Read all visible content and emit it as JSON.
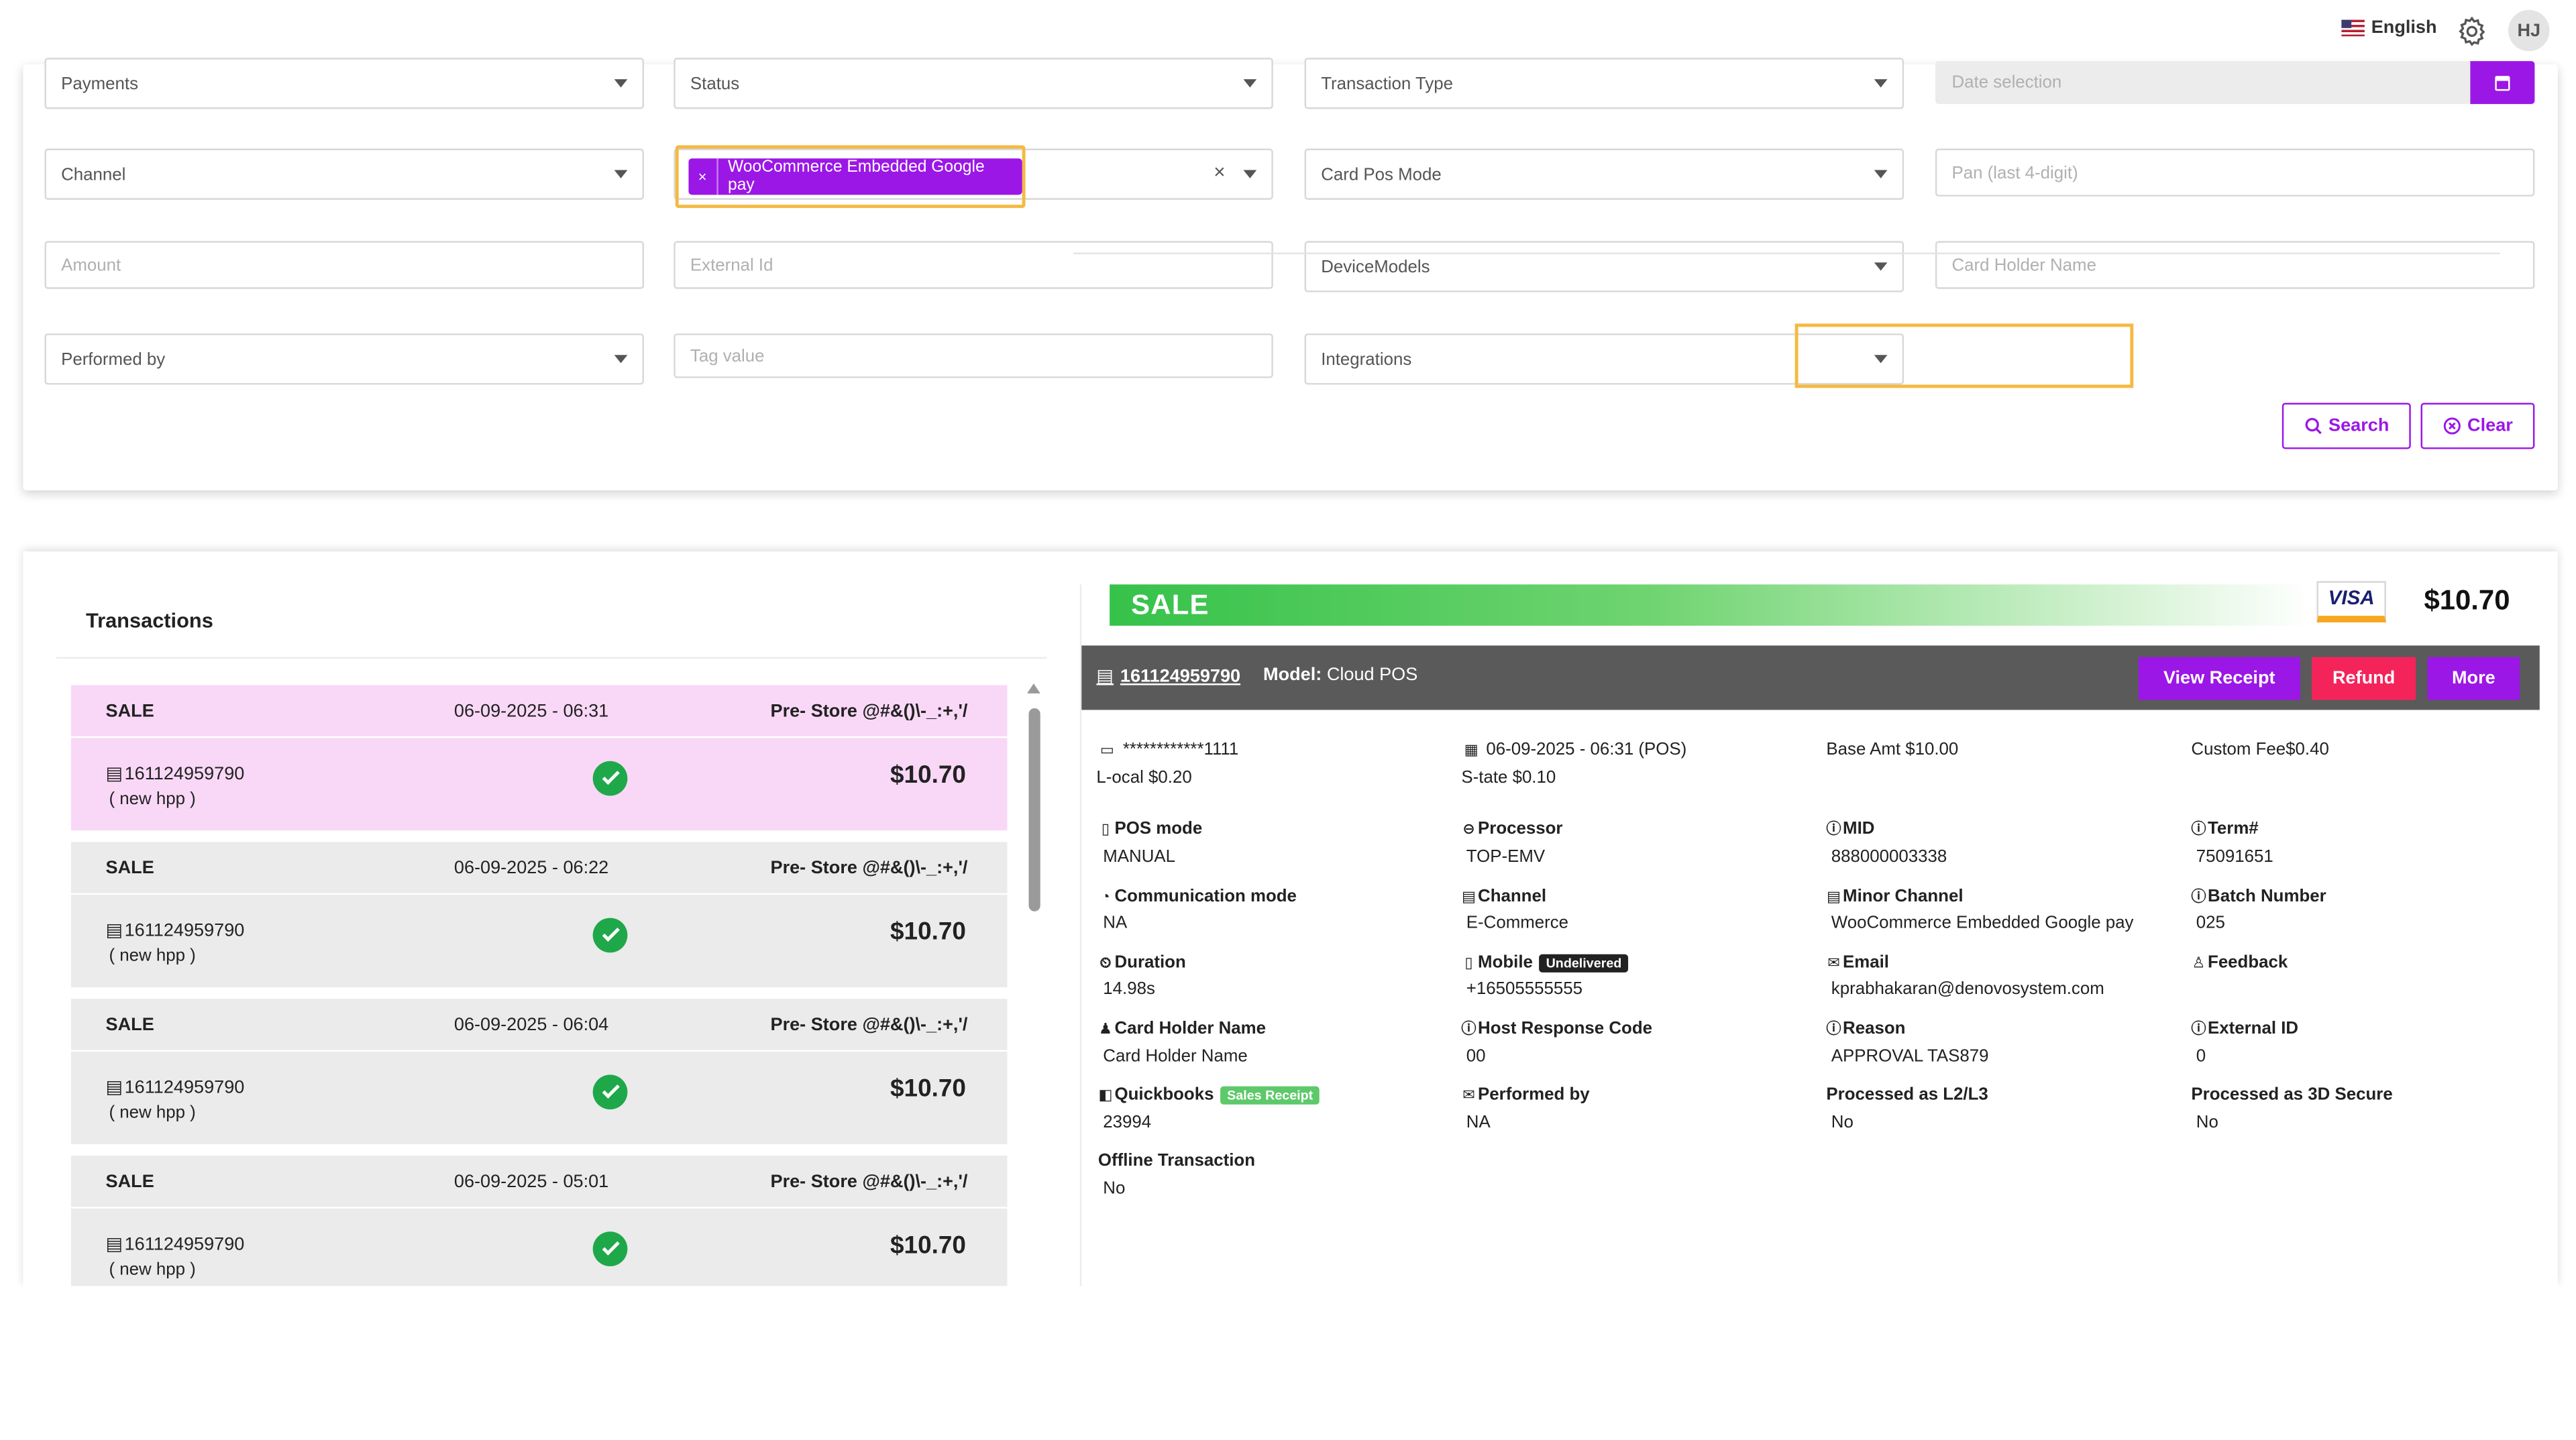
{
  "header": {
    "language": "English",
    "user_initials": "HJ"
  },
  "filters": {
    "payments": "Payments",
    "status": "Status",
    "transaction_type": "Transaction Type",
    "date_placeholder": "Date selection",
    "channel": "Channel",
    "channel_chip": "WooCommerce Embedded Google pay",
    "chip_remove": "×",
    "clear_symbol": "×",
    "card_pos_mode": "Card Pos Mode",
    "pan_placeholder": "Pan (last 4-digit)",
    "amount_placeholder": "Amount",
    "external_id_placeholder": "External Id",
    "device_models": "DeviceModels",
    "card_holder_placeholder": "Card Holder Name",
    "performed_by": "Performed by",
    "tag_value_placeholder": "Tag value",
    "integrations": "Integrations",
    "search_label": "Search",
    "clear_label": "Clear"
  },
  "transactions": {
    "title": "Transactions",
    "items": [
      {
        "type": "SALE",
        "date": "06-09-2025 - 06:31",
        "store": "Pre- Store @#&()\\-_:+,'/",
        "id": "161124959790",
        "sub": "( new hpp )",
        "amount": "$10.70"
      },
      {
        "type": "SALE",
        "date": "06-09-2025 - 06:22",
        "store": "Pre- Store @#&()\\-_:+,'/",
        "id": "161124959790",
        "sub": "( new hpp )",
        "amount": "$10.70"
      },
      {
        "type": "SALE",
        "date": "06-09-2025 - 06:04",
        "store": "Pre- Store @#&()\\-_:+,'/",
        "id": "161124959790",
        "sub": "( new hpp )",
        "amount": "$10.70"
      },
      {
        "type": "SALE",
        "date": "06-09-2025 - 05:01",
        "store": "Pre- Store @#&()\\-_:+,'/",
        "id": "161124959790",
        "sub": "( new hpp )",
        "amount": "$10.70"
      }
    ]
  },
  "detail": {
    "type": "SALE",
    "card_brand": "VISA",
    "amount": "$10.70",
    "transaction_id": "161124959790",
    "model_label": "Model:",
    "model_value": "Cloud POS",
    "view_receipt": "View Receipt",
    "refund": "Refund",
    "more": "More",
    "card_mask": "************1111",
    "local": "L-ocal $0.20",
    "datetime": "06-09-2025 - 06:31 (POS)",
    "state": "S-tate $0.10",
    "base_amt": "Base Amt $10.00",
    "custom_fee": "Custom Fee$0.40",
    "fields": {
      "pos_mode_label": "POS mode",
      "pos_mode": "MANUAL",
      "processor_label": "Processor",
      "processor": "TOP-EMV",
      "mid_label": "MID",
      "mid": "888000003338",
      "term_label": "Term#",
      "term": "75091651",
      "comm_label": "Communication mode",
      "comm": "NA",
      "channel_label": "Channel",
      "channel": "E-Commerce",
      "minor_label": "Minor Channel",
      "minor": "WooCommerce Embedded Google pay",
      "batch_label": "Batch Number",
      "batch": "025",
      "duration_label": "Duration",
      "duration": "14.98s",
      "mobile_label": "Mobile",
      "mobile_badge": "Undelivered",
      "mobile": "+16505555555",
      "email_label": "Email",
      "email": "kprabhakaran@denovosystem.com",
      "feedback_label": "Feedback",
      "cardholder_label": "Card Holder Name",
      "cardholder": "Card Holder Name",
      "host_label": "Host Response Code",
      "host": "00",
      "reason_label": "Reason",
      "reason": "APPROVAL TAS879",
      "extid_label": "External ID",
      "extid": "0",
      "qb_label": "Quickbooks",
      "qb_badge": "Sales Receipt",
      "qb": "23994",
      "performed_label": "Performed by",
      "performed": "NA",
      "l2l3_label": "Processed as L2/L3",
      "l2l3": "No",
      "secure_label": "Processed as 3D Secure",
      "secure": "No",
      "offline_label": "Offline Transaction",
      "offline": "No"
    }
  },
  "colors": {
    "accent": "#9b17e6",
    "refund": "#f4245a",
    "success": "#1fa84a",
    "highlight": "#f5b942",
    "selected_row": "#f9d8f7"
  }
}
